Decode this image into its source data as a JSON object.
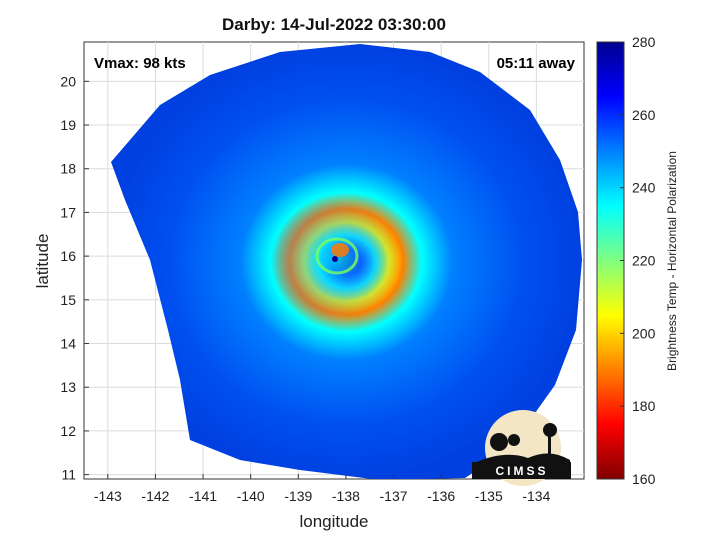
{
  "chart_data": {
    "type": "heatmap",
    "title": "Darby: 14-Jul-2022 03:30:00",
    "xlabel": "longitude",
    "ylabel": "latitude",
    "xlim": [
      -143.5,
      -133
    ],
    "ylim": [
      10.9,
      20.9
    ],
    "xticks": [
      -143,
      -142,
      -141,
      -140,
      -139,
      -138,
      -137,
      -136,
      -135,
      -134
    ],
    "yticks": [
      11,
      12,
      13,
      14,
      15,
      16,
      17,
      18,
      19,
      20
    ],
    "grid": true,
    "annotations": {
      "vmax": "Vmax: 98 kts",
      "time_away": "05:11 away"
    },
    "storm_center": {
      "lon": -138.2,
      "lat": 15.85
    },
    "colorbar": {
      "label": "Brightness Temp - Horizontal Polarization",
      "range": [
        160,
        280
      ],
      "ticks": [
        160,
        180,
        200,
        220,
        240,
        260,
        280
      ],
      "colors": [
        "#800000",
        "#ff0000",
        "#ff8000",
        "#ffff00",
        "#80ff80",
        "#00ffff",
        "#0080ff",
        "#0000ff",
        "#00008f"
      ]
    }
  },
  "logo": {
    "text": "CIMSS"
  }
}
